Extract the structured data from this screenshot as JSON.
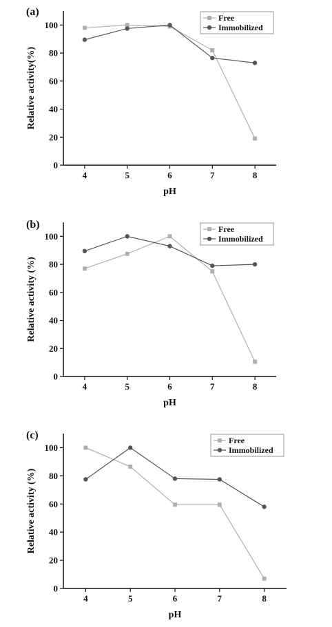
{
  "chart_data": [
    {
      "type": "line",
      "panel_label": "(a)",
      "xlabel": "pH",
      "ylabel": "Relative  activity(%)",
      "x": [
        4,
        5,
        6,
        7,
        8
      ],
      "xlim": [
        3.5,
        8.5
      ],
      "ylim": [
        0,
        110
      ],
      "yticks": [
        0,
        20,
        40,
        60,
        80,
        100
      ],
      "legend_position": "top-right",
      "series": [
        {
          "name": "Free",
          "marker": "square",
          "color": "#b0b0b0",
          "values": [
            98,
            100,
            99,
            82,
            19
          ]
        },
        {
          "name": "Immobilized",
          "marker": "circle",
          "color": "#555555",
          "values": [
            89.5,
            97.5,
            100,
            76.5,
            73
          ]
        }
      ]
    },
    {
      "type": "line",
      "panel_label": "(b)",
      "xlabel": "pH",
      "ylabel": "Relative activity (%)",
      "x": [
        4,
        5,
        6,
        7,
        8
      ],
      "xlim": [
        3.5,
        8.5
      ],
      "ylim": [
        0,
        110
      ],
      "yticks": [
        0,
        20,
        40,
        60,
        80,
        100
      ],
      "legend_position": "top-right",
      "series": [
        {
          "name": "Free",
          "marker": "square",
          "color": "#b0b0b0",
          "values": [
            77,
            87.5,
            100,
            75,
            10.5
          ]
        },
        {
          "name": "Immobilized",
          "marker": "circle",
          "color": "#555555",
          "values": [
            89.5,
            100,
            93,
            79,
            80
          ]
        }
      ]
    },
    {
      "type": "line",
      "panel_label": "(c)",
      "xlabel": "pH",
      "ylabel": "Relative activity (%)",
      "x": [
        4,
        5,
        6,
        7,
        8
      ],
      "xlim": [
        3.5,
        8.5
      ],
      "ylim": [
        0,
        110
      ],
      "yticks": [
        0,
        20,
        40,
        60,
        80,
        100
      ],
      "legend_position": "top-right",
      "series": [
        {
          "name": "Free",
          "marker": "square",
          "color": "#b0b0b0",
          "values": [
            100,
            86.5,
            59.5,
            59.5,
            7
          ]
        },
        {
          "name": "Immobilized",
          "marker": "circle",
          "color": "#555555",
          "values": [
            77.5,
            100,
            78,
            77.5,
            58
          ]
        }
      ]
    }
  ]
}
